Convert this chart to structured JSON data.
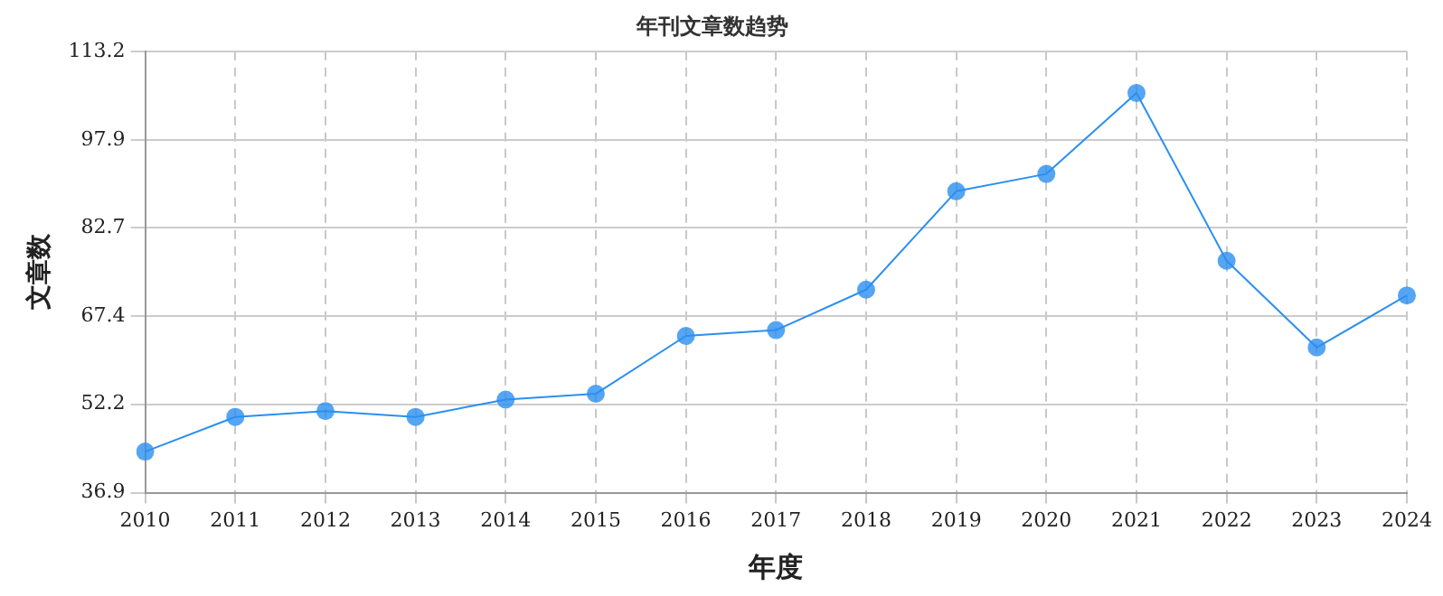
{
  "chart_data": {
    "type": "line",
    "title": "年刊文章数趋势",
    "xlabel": "年度",
    "ylabel": "文章数",
    "categories": [
      "2010",
      "2011",
      "2012",
      "2013",
      "2014",
      "2015",
      "2016",
      "2017",
      "2018",
      "2019",
      "2020",
      "2021",
      "2022",
      "2023",
      "2024"
    ],
    "series": [
      {
        "color": "#2b8ff0",
        "values": [
          44,
          50,
          51,
          50,
          53,
          54,
          64,
          65,
          72,
          89,
          92,
          106,
          77,
          62,
          71
        ]
      }
    ],
    "ylim": [
      36.9,
      113.2
    ],
    "yticks": [
      36.9,
      52.2,
      67.4,
      82.7,
      97.9,
      113.2
    ],
    "grid": true,
    "marker": "circle",
    "line_style": "solid",
    "legend": false
  }
}
